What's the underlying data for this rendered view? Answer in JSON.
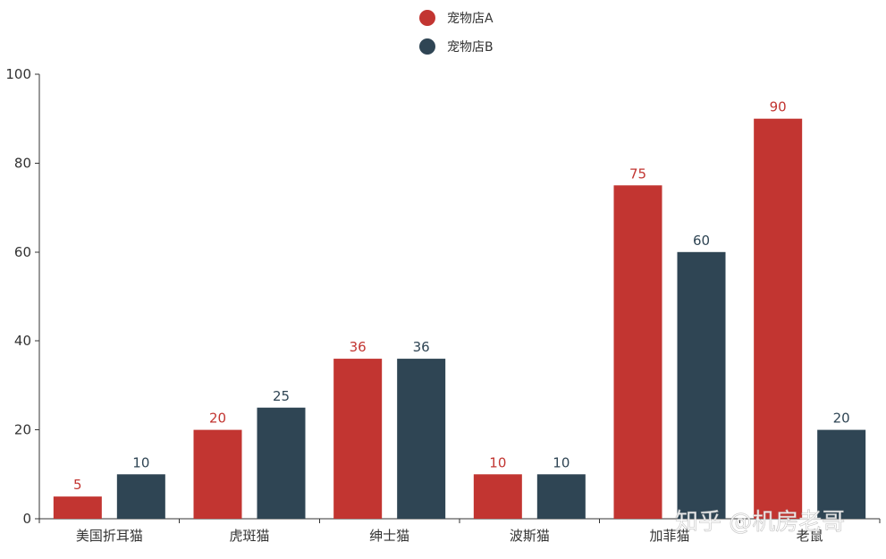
{
  "chart_data": {
    "type": "bar",
    "categories": [
      "美国折耳猫",
      "虎斑猫",
      "绅士猫",
      "波斯猫",
      "加菲猫",
      "老鼠"
    ],
    "series": [
      {
        "name": "宠物店A",
        "values": [
          5,
          20,
          36,
          10,
          75,
          90
        ],
        "color": "#c23531"
      },
      {
        "name": "宠物店B",
        "values": [
          10,
          25,
          36,
          10,
          60,
          20
        ],
        "color": "#2f4554"
      }
    ],
    "ylim": [
      0,
      100
    ],
    "yticks": [
      0,
      20,
      40,
      60,
      80,
      100
    ],
    "grid": false,
    "legend_position": "top-center",
    "data_labels": true
  },
  "watermark": "知乎 @机房老哥"
}
